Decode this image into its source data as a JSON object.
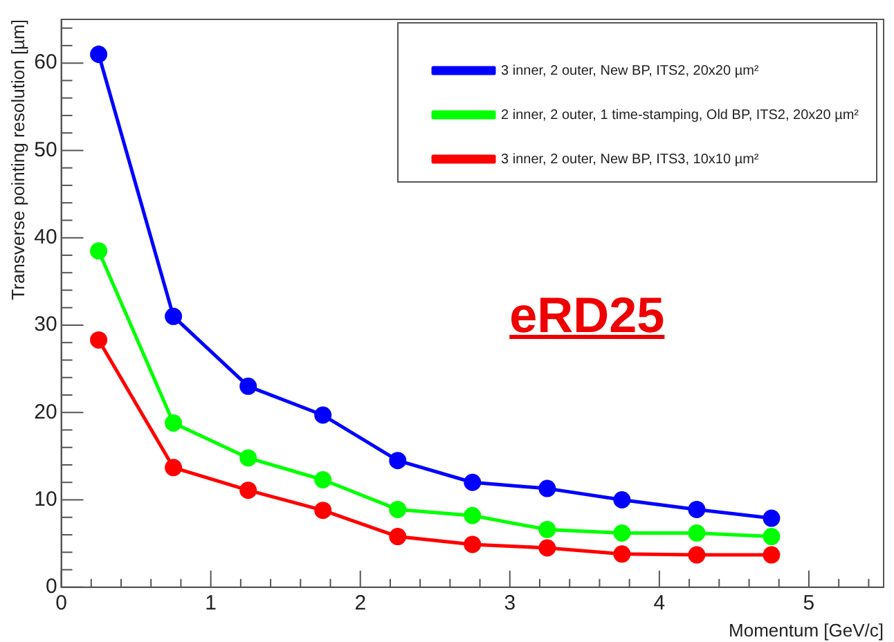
{
  "chart_data": {
    "type": "line",
    "xlabel": "Momentum [GeV/c]",
    "ylabel": "Transverse pointing resolution [µm]",
    "x": [
      0.25,
      0.75,
      1.25,
      1.75,
      2.25,
      2.75,
      3.25,
      3.75,
      4.25,
      4.75
    ],
    "series": [
      {
        "name": "3 inner, 2 outer, New BP, ITS2, 20x20 µm²",
        "color": "#0000ff",
        "values": [
          61,
          31,
          23,
          19.7,
          14.5,
          12,
          11.3,
          10,
          8.9,
          7.9
        ],
        "errors": [
          1,
          null,
          null,
          null,
          null,
          null,
          null,
          null,
          null,
          null
        ]
      },
      {
        "name": "2 inner, 2 outer, 1 time-stamping, Old BP, ITS2, 20x20 µm²",
        "color": "#00ff00",
        "values": [
          38.5,
          18.8,
          14.8,
          12.3,
          8.9,
          8.2,
          6.6,
          6.2,
          6.2,
          5.8
        ]
      },
      {
        "name": "3 inner, 2 outer, New BP, ITS3, 10x10 µm²",
        "color": "#ff0000",
        "values": [
          28.3,
          13.7,
          11.1,
          8.8,
          5.8,
          4.9,
          4.5,
          3.8,
          3.7,
          3.7
        ]
      }
    ],
    "annotations": [
      "eRD25"
    ],
    "xlim": [
      0,
      5.5
    ],
    "ylim": [
      0,
      65
    ],
    "xticks": [
      0,
      {
        "value": 0.2,
        "label": null
      },
      {
        "value": 0.4,
        "label": null
      },
      {
        "value": 0.6,
        "label": null
      },
      {
        "value": 0.8,
        "label": null
      },
      1,
      {
        "value": 1.2,
        "label": null
      },
      {
        "value": 1.4,
        "label": null
      },
      {
        "value": 1.6,
        "label": null
      },
      {
        "value": 1.8,
        "label": null
      },
      2,
      {
        "value": 2.2,
        "label": null
      },
      {
        "value": 2.4,
        "label": null
      },
      {
        "value": 2.6,
        "label": null
      },
      {
        "value": 2.8,
        "label": null
      },
      3,
      {
        "value": 3.2,
        "label": null
      },
      {
        "value": 3.4,
        "label": null
      },
      {
        "value": 3.6,
        "label": null
      },
      {
        "value": 3.8,
        "label": null
      },
      4,
      {
        "value": 4.2,
        "label": null
      },
      {
        "value": 4.4,
        "label": null
      },
      {
        "value": 4.6,
        "label": null
      },
      {
        "value": 4.8,
        "label": null
      },
      5,
      {
        "value": 5.2,
        "label": null
      },
      {
        "value": 5.4,
        "label": null
      }
    ],
    "yticks": [
      0,
      {
        "value": 2,
        "label": null
      },
      {
        "value": 4,
        "label": null
      },
      {
        "value": 6,
        "label": null
      },
      {
        "value": 8,
        "label": null
      },
      10,
      {
        "value": 12,
        "label": null
      },
      {
        "value": 14,
        "label": null
      },
      {
        "value": 16,
        "label": null
      },
      {
        "value": 18,
        "label": null
      },
      20,
      {
        "value": 22,
        "label": null
      },
      {
        "value": 24,
        "label": null
      },
      {
        "value": 26,
        "label": null
      },
      {
        "value": 28,
        "label": null
      },
      30,
      {
        "value": 32,
        "label": null
      },
      {
        "value": 34,
        "label": null
      },
      {
        "value": 36,
        "label": null
      },
      {
        "value": 38,
        "label": null
      },
      40,
      {
        "value": 42,
        "label": null
      },
      {
        "value": 44,
        "label": null
      },
      {
        "value": 46,
        "label": null
      },
      {
        "value": 48,
        "label": null
      },
      50,
      {
        "value": 52,
        "label": null
      },
      {
        "value": 54,
        "label": null
      },
      {
        "value": 56,
        "label": null
      },
      {
        "value": 58,
        "label": null
      },
      60,
      {
        "value": 62,
        "label": null
      },
      {
        "value": 64,
        "label": null
      }
    ],
    "grid": false,
    "legend": "top right",
    "marker": "circle",
    "line_style": "solid"
  }
}
